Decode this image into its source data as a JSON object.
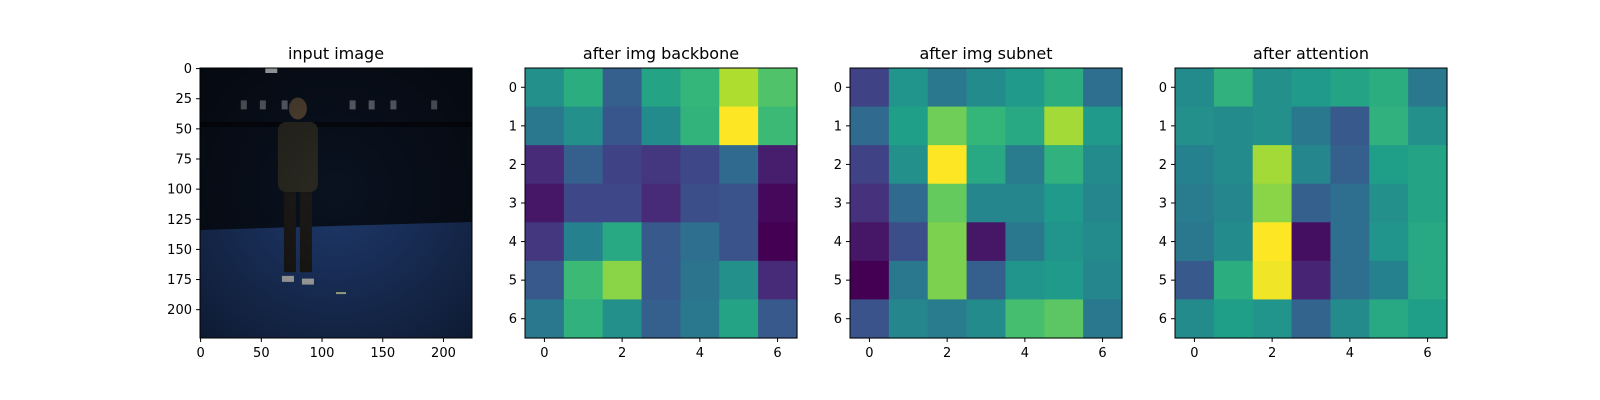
{
  "chart_data": [
    {
      "type": "image",
      "title": "input image",
      "x_ticks": [
        "0",
        "50",
        "100",
        "150",
        "200"
      ],
      "y_ticks": [
        "0",
        "25",
        "50",
        "75",
        "100",
        "125",
        "150",
        "175",
        "200"
      ],
      "xlim": [
        -0.5,
        223.5
      ],
      "ylim": [
        223.5,
        -0.5
      ],
      "image_description_colors": {
        "background_dark": "#0a1220",
        "floor_blue": "#1f3a6e",
        "person": "#2b2a22"
      }
    },
    {
      "type": "heatmap",
      "title": "after img backbone",
      "x_ticks": [
        "0",
        "2",
        "4",
        "6"
      ],
      "y_ticks": [
        "0",
        "1",
        "2",
        "3",
        "4",
        "5",
        "6"
      ],
      "colormap": "viridis",
      "values": [
        [
          0.5,
          0.62,
          0.3,
          0.58,
          0.66,
          0.88,
          0.72
        ],
        [
          0.4,
          0.5,
          0.27,
          0.48,
          0.65,
          1.0,
          0.68
        ],
        [
          0.12,
          0.3,
          0.2,
          0.16,
          0.22,
          0.34,
          0.08
        ],
        [
          0.06,
          0.22,
          0.22,
          0.12,
          0.24,
          0.26,
          0.02
        ],
        [
          0.16,
          0.44,
          0.6,
          0.28,
          0.36,
          0.26,
          0.0
        ],
        [
          0.28,
          0.68,
          0.82,
          0.28,
          0.38,
          0.5,
          0.12
        ],
        [
          0.4,
          0.64,
          0.5,
          0.3,
          0.4,
          0.58,
          0.28
        ]
      ]
    },
    {
      "type": "heatmap",
      "title": "after img subnet",
      "x_ticks": [
        "0",
        "2",
        "4",
        "6"
      ],
      "y_ticks": [
        "0",
        "1",
        "2",
        "3",
        "4",
        "5",
        "6"
      ],
      "colormap": "viridis",
      "values": [
        [
          0.2,
          0.52,
          0.4,
          0.48,
          0.54,
          0.62,
          0.36
        ],
        [
          0.34,
          0.56,
          0.78,
          0.66,
          0.6,
          0.86,
          0.54
        ],
        [
          0.2,
          0.5,
          1.0,
          0.6,
          0.42,
          0.64,
          0.48
        ],
        [
          0.14,
          0.34,
          0.76,
          0.46,
          0.46,
          0.54,
          0.46
        ],
        [
          0.06,
          0.24,
          0.8,
          0.06,
          0.4,
          0.52,
          0.48
        ],
        [
          0.0,
          0.4,
          0.8,
          0.3,
          0.52,
          0.54,
          0.46
        ],
        [
          0.26,
          0.46,
          0.42,
          0.48,
          0.7,
          0.74,
          0.4
        ]
      ]
    },
    {
      "type": "heatmap",
      "title": "after attention",
      "x_ticks": [
        "0",
        "2",
        "4",
        "6"
      ],
      "y_ticks": [
        "0",
        "1",
        "2",
        "3",
        "4",
        "5",
        "6"
      ],
      "colormap": "viridis",
      "values": [
        [
          0.48,
          0.64,
          0.5,
          0.54,
          0.58,
          0.62,
          0.4
        ],
        [
          0.5,
          0.48,
          0.5,
          0.4,
          0.28,
          0.64,
          0.5
        ],
        [
          0.44,
          0.48,
          0.86,
          0.46,
          0.3,
          0.56,
          0.58
        ],
        [
          0.42,
          0.46,
          0.82,
          0.3,
          0.36,
          0.5,
          0.58
        ],
        [
          0.4,
          0.48,
          1.0,
          0.04,
          0.36,
          0.52,
          0.6
        ],
        [
          0.28,
          0.62,
          0.98,
          0.1,
          0.36,
          0.44,
          0.6
        ],
        [
          0.48,
          0.56,
          0.52,
          0.32,
          0.48,
          0.6,
          0.56
        ]
      ]
    }
  ]
}
